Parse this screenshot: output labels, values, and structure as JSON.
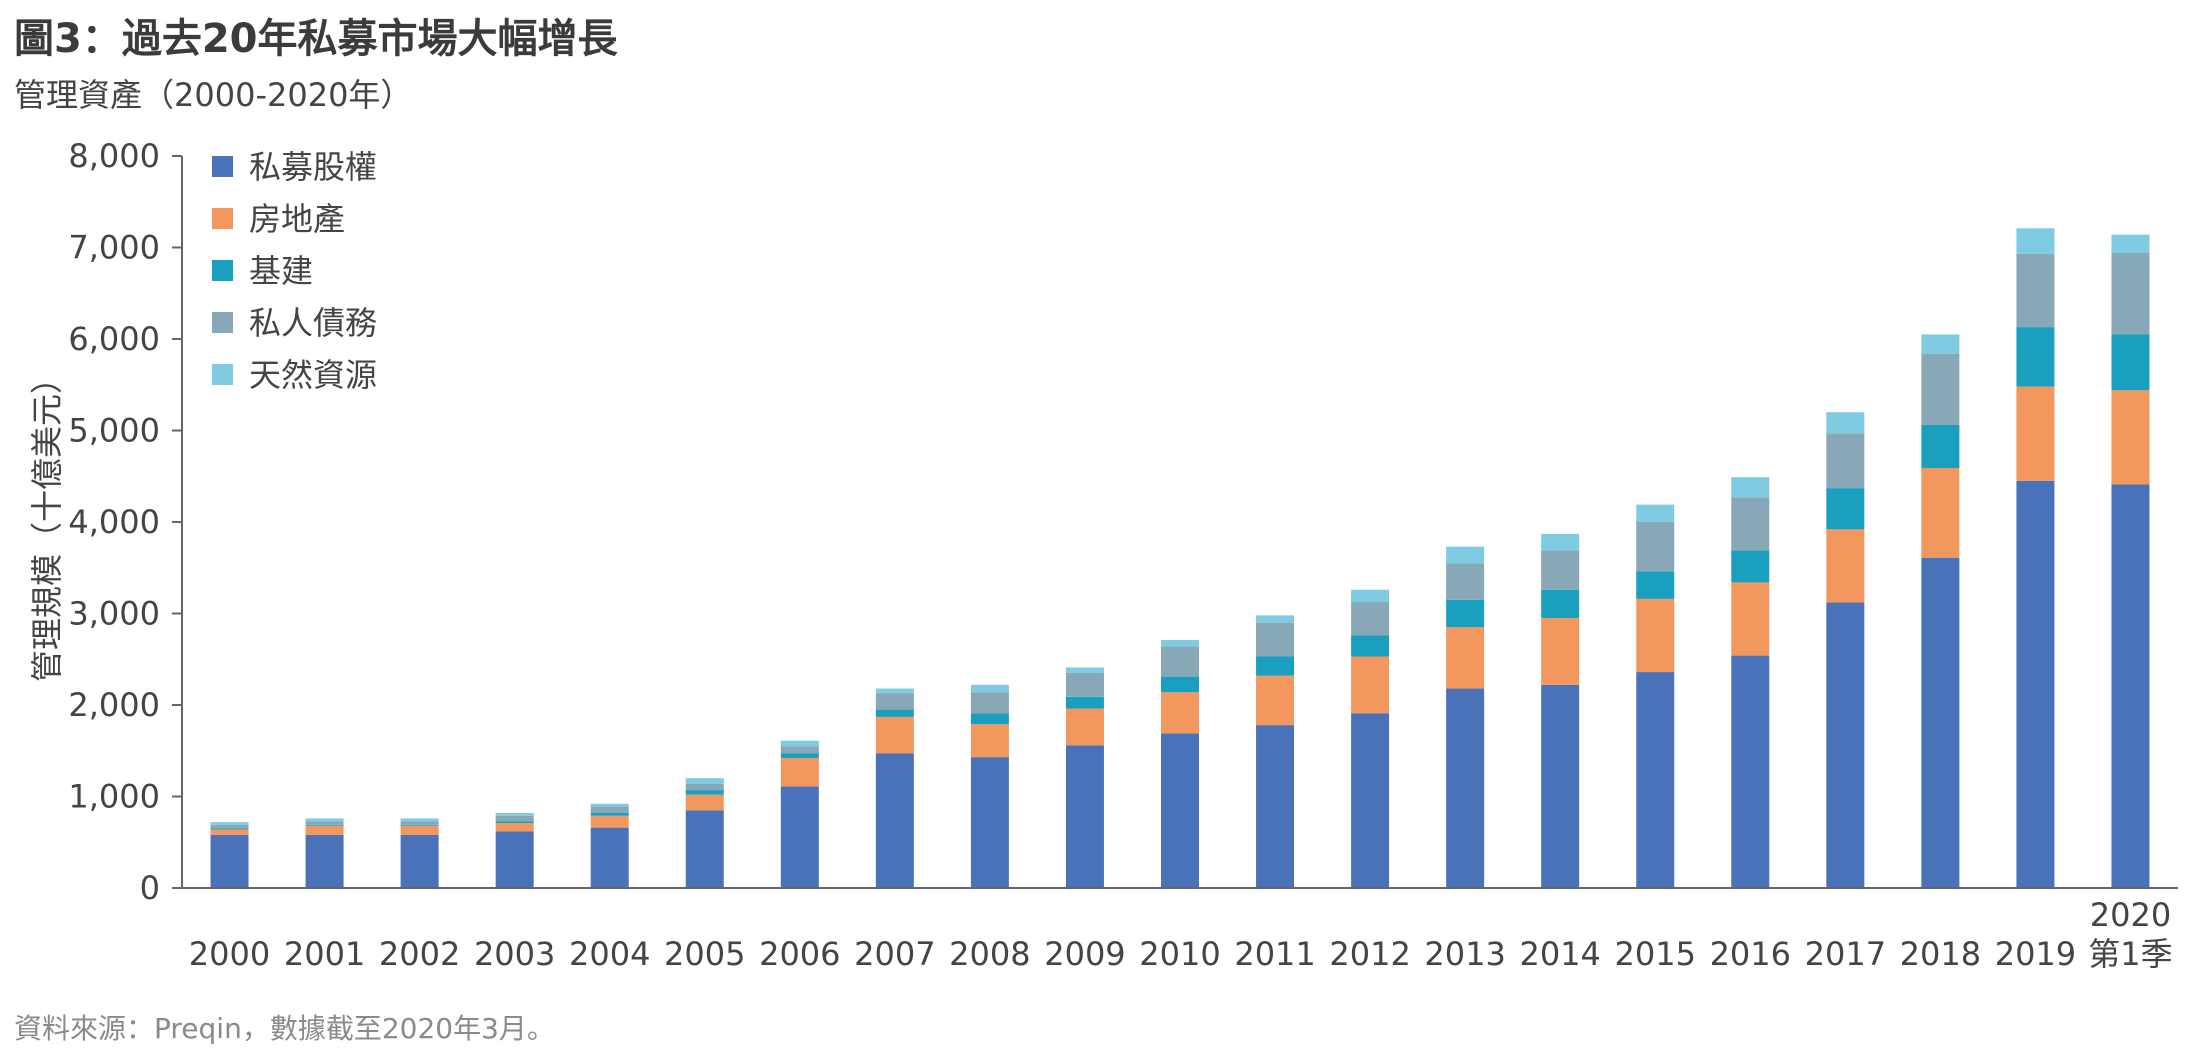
{
  "title": "圖3：過去20年私募市場大幅增長",
  "subtitle": "管理資產（2000-2020年）",
  "source": "資料來源：Preqin，數據截至2020年3月。",
  "chart_data": {
    "type": "bar",
    "stacked": true,
    "ylabel": "管理規模（十億美元）",
    "xlabel": "",
    "ylim": [
      0,
      8000
    ],
    "yticks": [
      "0",
      "1,000",
      "2,000",
      "3,000",
      "4,000",
      "5,000",
      "6,000",
      "7,000",
      "8,000"
    ],
    "categories": [
      "2000",
      "2001",
      "2002",
      "2003",
      "2004",
      "2005",
      "2006",
      "2007",
      "2008",
      "2009",
      "2010",
      "2011",
      "2012",
      "2013",
      "2014",
      "2015",
      "2016",
      "2017",
      "2018",
      "2019",
      "2020 第1季"
    ],
    "legend_position": "top-left",
    "series": [
      {
        "name": "私募股權",
        "color": "#4a72b8",
        "values": [
          580,
          580,
          580,
          620,
          660,
          850,
          1110,
          1470,
          1430,
          1560,
          1690,
          1780,
          1910,
          2180,
          2220,
          2360,
          2540,
          3120,
          3610,
          4450,
          4410
        ]
      },
      {
        "name": "房地產",
        "color": "#f2975e",
        "values": [
          60,
          100,
          100,
          90,
          130,
          170,
          310,
          400,
          360,
          400,
          450,
          540,
          620,
          670,
          730,
          800,
          800,
          800,
          980,
          1030,
          1030
        ]
      },
      {
        "name": "基建",
        "color": "#1b9fbf",
        "values": [
          10,
          10,
          10,
          20,
          30,
          50,
          50,
          80,
          120,
          130,
          170,
          210,
          230,
          300,
          310,
          300,
          350,
          450,
          470,
          650,
          610
        ]
      },
      {
        "name": "私人債務",
        "color": "#88a8b8",
        "values": [
          40,
          40,
          40,
          60,
          70,
          70,
          80,
          180,
          230,
          260,
          330,
          370,
          370,
          400,
          430,
          540,
          580,
          600,
          780,
          800,
          890
        ]
      },
      {
        "name": "天然資源",
        "color": "#7ecbe2",
        "values": [
          30,
          30,
          30,
          30,
          30,
          60,
          60,
          50,
          80,
          60,
          70,
          80,
          130,
          180,
          180,
          190,
          220,
          230,
          210,
          280,
          200
        ]
      }
    ]
  }
}
